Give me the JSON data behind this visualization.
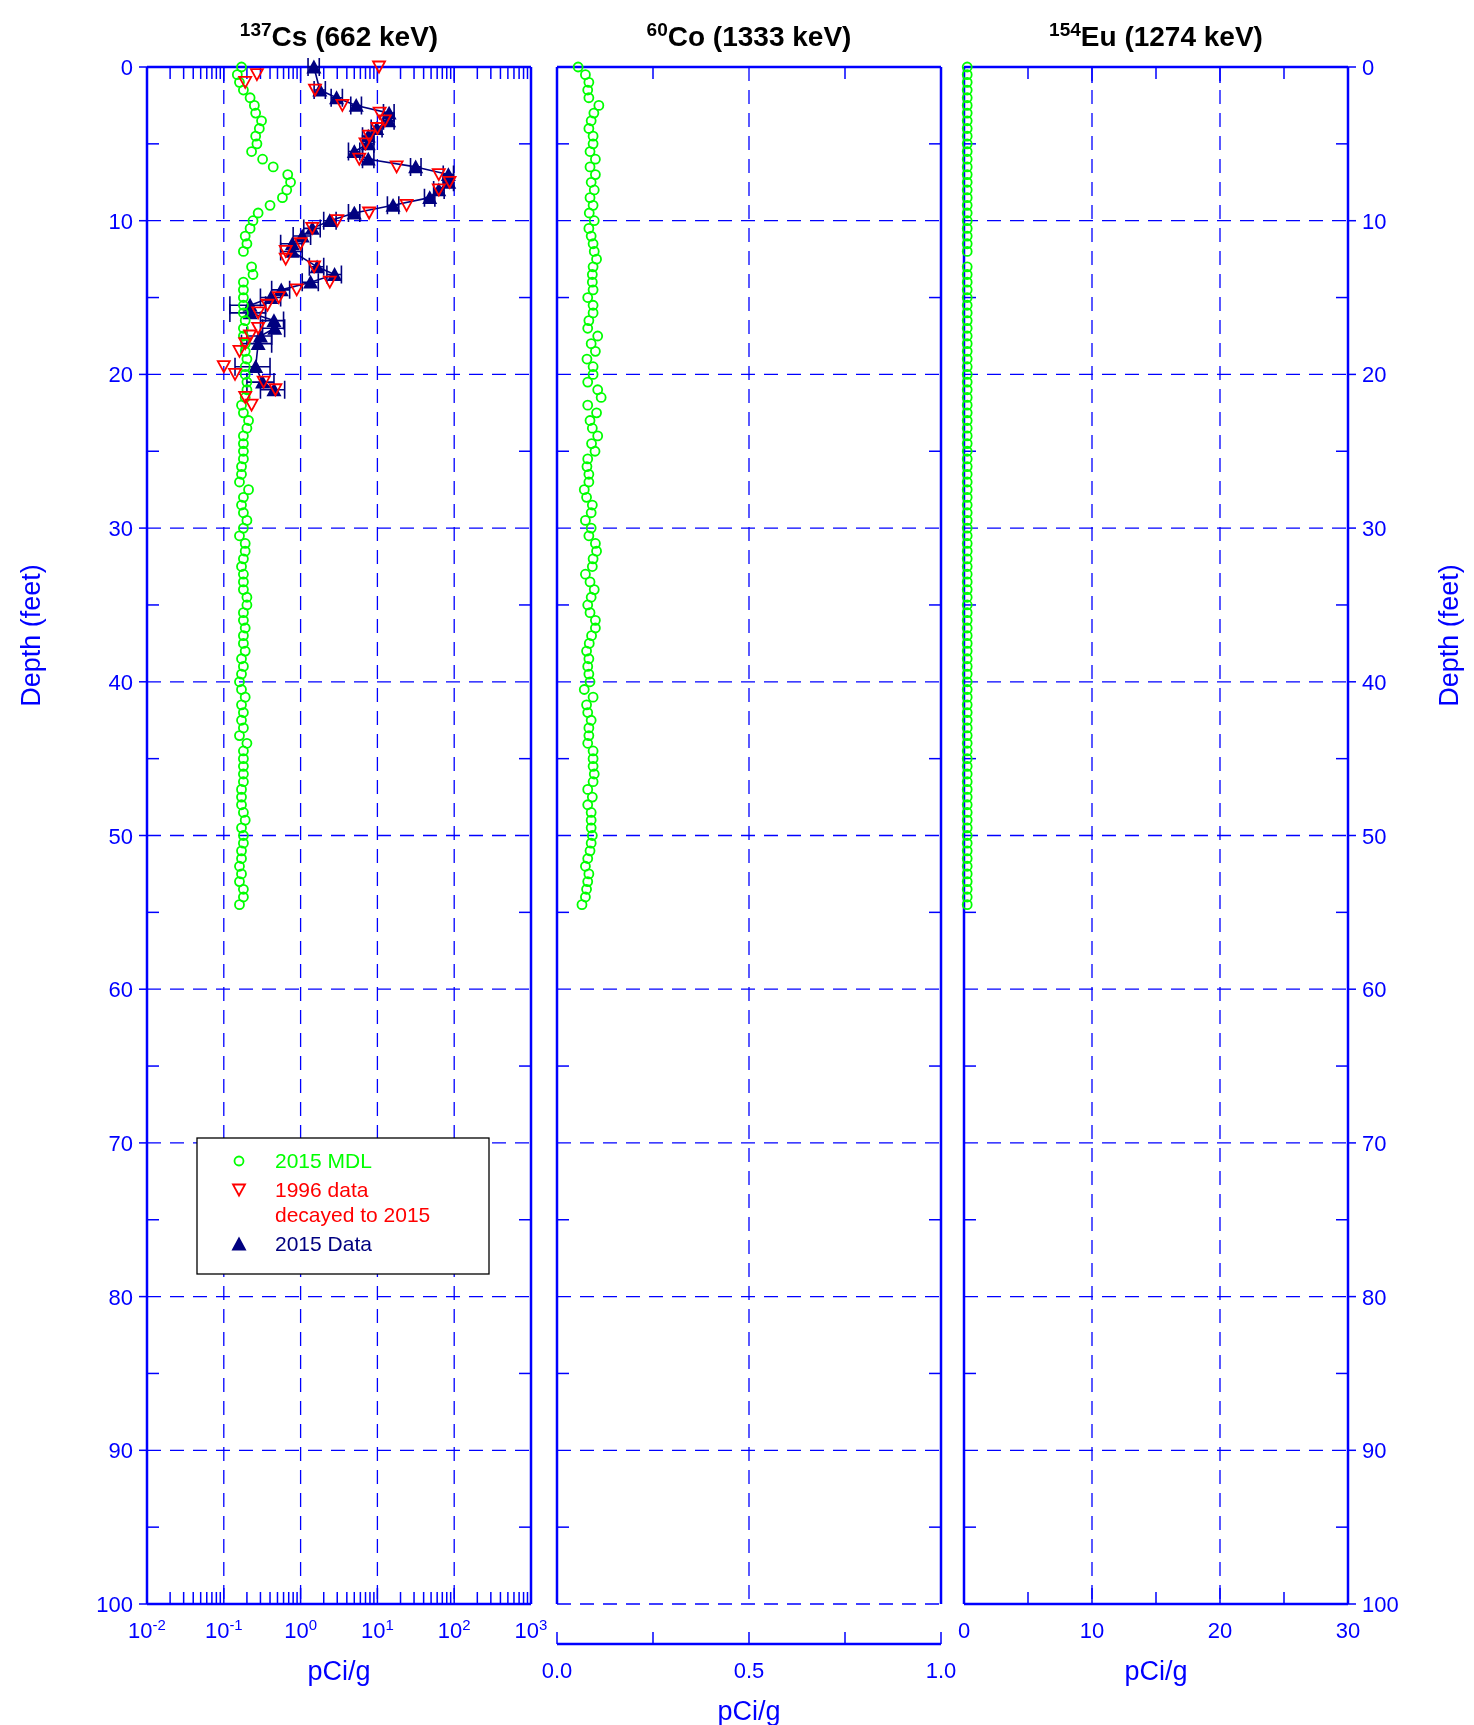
{
  "chart_data": [
    {
      "type": "scatter",
      "title": "$^{137}$Cs (662 keV)",
      "xlabel": "pCi/g",
      "ylabel": "Depth (feet)",
      "log": "x",
      "grid": true,
      "legend": "bottom left",
      "xlim": [
        0.01,
        1000
      ],
      "xticks": [
        {
          "value": 0.01,
          "label": "10$^{-2}$"
        },
        {
          "value": 0.1,
          "label": "10$^{-1}$"
        },
        {
          "value": 1,
          "label": "10$^{0}$"
        },
        {
          "value": 10,
          "label": "10$^{1}$"
        },
        {
          "value": 100,
          "label": "10$^{2}$"
        },
        {
          "value": 1000,
          "label": "10$^{3}$"
        },
        {
          "value": 0.02,
          "label": null
        },
        {
          "value": 0.03,
          "label": null
        },
        {
          "value": 0.04,
          "label": null
        },
        {
          "value": 0.05,
          "label": null
        },
        {
          "value": 0.06,
          "label": null
        },
        {
          "value": 0.07,
          "label": null
        },
        {
          "value": 0.08,
          "label": null
        },
        {
          "value": 0.09,
          "label": null
        },
        {
          "value": 0.2,
          "label": null
        },
        {
          "value": 0.3,
          "label": null
        },
        {
          "value": 0.4,
          "label": null
        },
        {
          "value": 0.5,
          "label": null
        },
        {
          "value": 0.6,
          "label": null
        },
        {
          "value": 0.7,
          "label": null
        },
        {
          "value": 0.8,
          "label": null
        },
        {
          "value": 0.9,
          "label": null
        },
        {
          "value": 2,
          "label": null
        },
        {
          "value": 3,
          "label": null
        },
        {
          "value": 4,
          "label": null
        },
        {
          "value": 5,
          "label": null
        },
        {
          "value": 6,
          "label": null
        },
        {
          "value": 7,
          "label": null
        },
        {
          "value": 8,
          "label": null
        },
        {
          "value": 9,
          "label": null
        },
        {
          "value": 20,
          "label": null
        },
        {
          "value": 30,
          "label": null
        },
        {
          "value": 40,
          "label": null
        },
        {
          "value": 50,
          "label": null
        },
        {
          "value": 60,
          "label": null
        },
        {
          "value": 70,
          "label": null
        },
        {
          "value": 80,
          "label": null
        },
        {
          "value": 90,
          "label": null
        },
        {
          "value": 200,
          "label": null
        },
        {
          "value": 300,
          "label": null
        },
        {
          "value": 400,
          "label": null
        },
        {
          "value": 500,
          "label": null
        },
        {
          "value": 600,
          "label": null
        },
        {
          "value": 700,
          "label": null
        },
        {
          "value": 800,
          "label": null
        },
        {
          "value": 900,
          "label": null
        }
      ],
      "ylim": [
        100,
        0
      ],
      "yticks": [
        0,
        10,
        20,
        30,
        40,
        50,
        60,
        70,
        80,
        90,
        100,
        {
          "value": 5,
          "label": null
        },
        {
          "value": 15,
          "label": null
        },
        {
          "value": 25,
          "label": null
        },
        {
          "value": 35,
          "label": null
        },
        {
          "value": 45,
          "label": null
        },
        {
          "value": 55,
          "label": null
        },
        {
          "value": 65,
          "label": null
        },
        {
          "value": 75,
          "label": null
        },
        {
          "value": 85,
          "label": null
        },
        {
          "value": 95,
          "label": null
        }
      ],
      "series": [
        {
          "name": "2015 MDL",
          "type": "scatter",
          "marker": "circle",
          "color": "#00ff00",
          "x": [
            0.17,
            0.15,
            0.16,
            0.18,
            0.22,
            0.25,
            0.26,
            0.31,
            0.29,
            0.26,
            0.27,
            0.23,
            0.32,
            0.44,
            0.68,
            0.74,
            0.66,
            0.58,
            0.4,
            0.28,
            0.24,
            0.22,
            0.19,
            0.2,
            0.18,
            0.23,
            0.24,
            0.18,
            0.18,
            0.18,
            0.18,
            0.18,
            0.19,
            0.18,
            0.18,
            0.19,
            0.19,
            0.2,
            0.19,
            0.19,
            0.2,
            0.2,
            0.19,
            0.17,
            0.18,
            0.21,
            0.2,
            0.18,
            0.18,
            0.18,
            0.18,
            0.17,
            0.17,
            0.16,
            0.21,
            0.18,
            0.17,
            0.18,
            0.2,
            0.18,
            0.16,
            0.19,
            0.19,
            0.18,
            0.17,
            0.18,
            0.18,
            0.18,
            0.2,
            0.2,
            0.18,
            0.18,
            0.19,
            0.18,
            0.18,
            0.19,
            0.17,
            0.18,
            0.17,
            0.16,
            0.17,
            0.19,
            0.17,
            0.18,
            0.17,
            0.18,
            0.16,
            0.2,
            0.18,
            0.18,
            0.18,
            0.18,
            0.18,
            0.17,
            0.17,
            0.17,
            0.18,
            0.19,
            0.17,
            0.18,
            0.18,
            0.17,
            0.17,
            0.16,
            0.17,
            0.16,
            0.18,
            0.18,
            0.16
          ],
          "values": [
            0,
            0.5,
            1,
            1.5,
            2,
            2.5,
            3,
            3.5,
            4,
            4.5,
            5,
            5.5,
            6,
            6.5,
            7,
            7.5,
            8,
            8.5,
            9,
            9.5,
            10,
            10.5,
            11,
            11.5,
            12,
            13,
            13.5,
            14,
            14.5,
            15,
            15.5,
            16,
            16.5,
            17,
            17.5,
            18,
            18.5,
            19,
            19.5,
            20,
            20.5,
            21,
            21.5,
            22,
            22.5,
            23,
            23.5,
            24,
            24.5,
            25,
            25.5,
            26,
            26.5,
            27,
            27.5,
            28,
            28.5,
            29,
            29.5,
            30,
            30.5,
            31,
            31.5,
            32,
            32.5,
            33,
            33.5,
            34,
            34.5,
            35,
            35.5,
            36,
            36.5,
            37,
            37.5,
            38,
            38.5,
            39,
            39.5,
            40,
            40.5,
            41,
            41.5,
            42,
            42.5,
            43,
            43.5,
            44,
            44.5,
            45,
            45.5,
            46,
            46.5,
            47,
            47.5,
            48,
            48.5,
            49,
            49.5,
            50,
            50.5,
            51,
            51.5,
            52,
            52.5,
            53,
            53.5,
            54,
            54.5
          ]
        },
        {
          "name": "1996 data decayed to 2015",
          "type": "scatter",
          "marker": "triangle-down",
          "color": "#ff0000",
          "x": [
            10.5,
            0.27,
            0.19,
            1.54,
            3.5,
            10.7,
            12.5,
            10,
            7.8,
            7.0,
            5.8,
            17.8,
            63,
            87,
            63,
            24,
            7.8,
            3.0,
            1.42,
            1.0,
            0.64,
            0.64,
            1.5,
            2.4,
            0.89,
            0.52,
            0.37,
            0.28,
            0.28,
            0.22,
            0.19,
            0.16,
            0.1,
            0.14,
            0.33,
            0.47,
            0.19,
            0.23
          ],
          "values": [
            0,
            0.5,
            1,
            1.5,
            2.5,
            3,
            3.5,
            4,
            4.5,
            5,
            6,
            6.5,
            7,
            7.5,
            8,
            9,
            9.5,
            10,
            10.5,
            11.5,
            12,
            12.5,
            13,
            14,
            14.5,
            15,
            15.5,
            16,
            17,
            17.5,
            18,
            18.5,
            19.5,
            20,
            20.5,
            21,
            21.5,
            22
          ]
        },
        {
          "name": "2015 Data",
          "type": "line",
          "marker": "triangle",
          "color": "#000080",
          "x": [
            1.49,
            1.78,
            2.94,
            5.3,
            14.2,
            14,
            9.8,
            7.6,
            7.6,
            5.0,
            7.6,
            31.5,
            84,
            85,
            63,
            48,
            16,
            5.0,
            2.4,
            1.42,
            1.05,
            0.78,
            0.78,
            1.64,
            2.77,
            1.35,
            0.56,
            0.41,
            0.22,
            0.22,
            0.45,
            0.46,
            0.3,
            0.28,
            0.26,
            0.32,
            0.45
          ],
          "values": [
            0,
            1.5,
            2,
            2.5,
            3,
            3.5,
            4,
            4.5,
            5,
            5.5,
            6,
            6.5,
            7,
            7.5,
            8,
            8.5,
            9,
            9.5,
            10,
            10.5,
            11,
            11.5,
            12,
            13,
            13.5,
            14,
            14.5,
            15,
            15.5,
            16,
            16.5,
            17,
            17.5,
            18,
            19.5,
            20.5,
            21
          ],
          "xerrors": [
            [
              1.25,
              1.75
            ],
            [
              1.5,
              2.1
            ],
            [
              2.5,
              3.5
            ],
            [
              4.5,
              6.2
            ],
            [
              12,
              16.5
            ],
            [
              12,
              16.5
            ],
            [
              8.3,
              11.5
            ],
            [
              6.4,
              9
            ],
            [
              6.4,
              9
            ],
            [
              4.2,
              5.9
            ],
            [
              6.4,
              9
            ],
            [
              27,
              37
            ],
            [
              72,
              98
            ],
            [
              72,
              98
            ],
            [
              54,
              74
            ],
            [
              41,
              56
            ],
            [
              13.5,
              19
            ],
            [
              4.2,
              5.9
            ],
            [
              2,
              2.9
            ],
            [
              1.1,
              1.8
            ],
            [
              0.8,
              1.35
            ],
            [
              0.55,
              1.05
            ],
            [
              0.55,
              1.05
            ],
            [
              1.3,
              2.0
            ],
            [
              2.2,
              3.4
            ],
            [
              1.05,
              1.7
            ],
            [
              0.42,
              0.72
            ],
            [
              0.3,
              0.55
            ],
            [
              0.12,
              0.35
            ],
            [
              0.12,
              0.35
            ],
            [
              0.3,
              0.6
            ],
            [
              0.32,
              0.62
            ],
            [
              0.2,
              0.42
            ],
            [
              0.17,
              0.42
            ],
            [
              0.14,
              0.4
            ],
            [
              0.2,
              0.45
            ],
            [
              0.3,
              0.62
            ]
          ]
        }
      ]
    },
    {
      "type": "scatter",
      "title": "$^{60}$Co (1333 keV)",
      "xlabel": "pCi/g",
      "grid": true,
      "tick_labels": "x",
      "xlim": [
        0,
        1
      ],
      "xticks": [
        {
          "value": 0,
          "label": "0.0"
        },
        {
          "value": 0.25,
          "label": null
        },
        {
          "value": 0.5,
          "label": "0.5"
        },
        {
          "value": 0.75,
          "label": null
        },
        {
          "value": 1,
          "label": "1.0"
        }
      ],
      "ylim": [
        100,
        0
      ],
      "yticks": [
        0,
        10,
        20,
        30,
        40,
        50,
        60,
        70,
        80,
        90,
        100,
        {
          "value": 5,
          "label": null
        },
        {
          "value": 15,
          "label": null
        },
        {
          "value": 25,
          "label": null
        },
        {
          "value": 35,
          "label": null
        },
        {
          "value": 45,
          "label": null
        },
        {
          "value": 55,
          "label": null
        },
        {
          "value": 65,
          "label": null
        },
        {
          "value": 75,
          "label": null
        },
        {
          "value": 85,
          "label": null
        },
        {
          "value": 95,
          "label": null
        }
      ],
      "series": [
        {
          "type": "scatter",
          "marker": "circle",
          "color": "#00ff00",
          "x": [
            0.055,
            0.074,
            0.083,
            0.08,
            0.083,
            0.109,
            0.096,
            0.089,
            0.083,
            0.094,
            0.094,
            0.086,
            0.1,
            0.086,
            0.1,
            0.089,
            0.097,
            0.086,
            0.094,
            0.084,
            0.097,
            0.083,
            0.089,
            0.094,
            0.097,
            0.103,
            0.094,
            0.092,
            0.092,
            0.094,
            0.08,
            0.094,
            0.094,
            0.083,
            0.08,
            0.106,
            0.089,
            0.1,
            0.078,
            0.094,
            0.094,
            0.08,
            0.106,
            0.115,
            0.08,
            0.103,
            0.086,
            0.092,
            0.106,
            0.09,
            0.099,
            0.08,
            0.078,
            0.083,
            0.083,
            0.071,
            0.077,
            0.092,
            0.089,
            0.074,
            0.089,
            0.083,
            0.1,
            0.103,
            0.094,
            0.092,
            0.074,
            0.086,
            0.097,
            0.089,
            0.08,
            0.086,
            0.1,
            0.1,
            0.09,
            0.084,
            0.077,
            0.083,
            0.08,
            0.083,
            0.086,
            0.071,
            0.094,
            0.077,
            0.08,
            0.089,
            0.083,
            0.083,
            0.08,
            0.094,
            0.094,
            0.094,
            0.097,
            0.094,
            0.08,
            0.092,
            0.08,
            0.089,
            0.089,
            0.089,
            0.092,
            0.089,
            0.086,
            0.08,
            0.074,
            0.083,
            0.08,
            0.077,
            0.074,
            0.065
          ],
          "values": [
            0,
            0.5,
            1,
            1.5,
            2,
            2.5,
            3,
            3.5,
            4,
            4.5,
            5,
            5.5,
            6,
            6.5,
            7,
            7.5,
            8,
            8.5,
            9,
            9.5,
            10,
            10.5,
            11,
            11.5,
            12,
            12.5,
            13,
            13.5,
            14,
            14.5,
            15,
            15.5,
            16,
            16.5,
            17,
            17.5,
            18,
            18.5,
            19,
            19.5,
            20,
            20.5,
            21,
            21.5,
            22,
            22.5,
            23,
            23.5,
            24,
            24.5,
            25,
            25.5,
            26,
            26.5,
            27,
            27.5,
            28,
            28.5,
            29,
            29.5,
            30,
            30.5,
            31,
            31.5,
            32,
            32.5,
            33,
            33.5,
            34,
            34.5,
            35,
            35.5,
            36,
            36.5,
            37,
            37.5,
            38,
            38.5,
            39,
            39.5,
            40,
            40.5,
            41,
            41.5,
            42,
            42.5,
            43,
            43.5,
            44,
            44.5,
            45,
            45.5,
            46,
            46.5,
            47,
            47.5,
            48,
            48.5,
            49,
            49.5,
            50,
            50.5,
            51,
            51.5,
            52,
            52.5,
            53,
            53.5,
            54,
            54.5
          ]
        }
      ]
    },
    {
      "type": "scatter",
      "title": "$^{154}$Eu (1274 keV)",
      "xlabel": "pCi/g",
      "ylabel": "Depth (feet)",
      "grid": true,
      "xlim": [
        0,
        30
      ],
      "xticks": [
        0,
        10,
        20,
        30,
        {
          "value": 5,
          "label": null
        },
        {
          "value": 15,
          "label": null
        },
        {
          "value": 25,
          "label": null
        }
      ],
      "ylim": [
        100,
        0
      ],
      "yticks": [
        0,
        10,
        20,
        30,
        40,
        50,
        60,
        70,
        80,
        90,
        100,
        {
          "value": 5,
          "label": null
        },
        {
          "value": 15,
          "label": null
        },
        {
          "value": 25,
          "label": null
        },
        {
          "value": 35,
          "label": null
        },
        {
          "value": 45,
          "label": null
        },
        {
          "value": 55,
          "label": null
        },
        {
          "value": 65,
          "label": null
        },
        {
          "value": 75,
          "label": null
        },
        {
          "value": 85,
          "label": null
        },
        {
          "value": 95,
          "label": null
        }
      ],
      "series": [
        {
          "type": "scatter",
          "marker": "circle",
          "color": "#00ff00",
          "x": [
            0.25,
            0.25,
            0.25,
            0.25,
            0.25,
            0.25,
            0.25,
            0.25,
            0.25,
            0.25,
            0.25,
            0.25,
            0.25,
            0.25,
            0.25,
            0.25,
            0.25,
            0.25,
            0.25,
            0.25,
            0.25,
            0.25,
            0.25,
            0.25,
            0.25,
            0.25,
            0.25,
            0.25,
            0.25,
            0.25,
            0.25,
            0.25,
            0.25,
            0.25,
            0.25,
            0.25,
            0.25,
            0.25,
            0.25,
            0.25,
            0.25,
            0.25,
            0.25,
            0.25,
            0.25,
            0.25,
            0.25,
            0.25,
            0.25,
            0.25,
            0.25,
            0.25,
            0.25,
            0.25,
            0.25,
            0.25,
            0.25,
            0.25,
            0.25,
            0.25,
            0.25,
            0.25,
            0.25,
            0.25,
            0.25,
            0.25,
            0.25,
            0.25,
            0.25,
            0.25,
            0.25,
            0.25,
            0.25,
            0.25,
            0.25,
            0.25,
            0.25,
            0.25,
            0.25,
            0.25,
            0.25,
            0.25,
            0.25,
            0.25,
            0.25,
            0.25,
            0.25,
            0.25,
            0.25,
            0.25,
            0.25,
            0.25,
            0.25,
            0.25,
            0.25,
            0.25,
            0.25,
            0.25,
            0.25,
            0.25,
            0.25,
            0.25,
            0.25,
            0.25,
            0.25,
            0.25,
            0.25,
            0.25,
            0.25
          ],
          "values": [
            0,
            0.5,
            1,
            1.5,
            2,
            2.5,
            3,
            3.5,
            4,
            4.5,
            5,
            5.5,
            6,
            6.5,
            7,
            7.5,
            8,
            8.5,
            9,
            9.5,
            10,
            10.5,
            11,
            11.5,
            12,
            13,
            13.5,
            14,
            14.5,
            15,
            15.5,
            16,
            16.5,
            17,
            17.5,
            18,
            18.5,
            19,
            19.5,
            20,
            20.5,
            21,
            21.5,
            22,
            22.5,
            23,
            23.5,
            24,
            24.5,
            25,
            25.5,
            26,
            26.5,
            27,
            27.5,
            28,
            28.5,
            29,
            29.5,
            30,
            30.5,
            31,
            31.5,
            32,
            32.5,
            33,
            33.5,
            34,
            34.5,
            35,
            35.5,
            36,
            36.5,
            37,
            37.5,
            38,
            38.5,
            39,
            39.5,
            40,
            40.5,
            41,
            41.5,
            42,
            42.5,
            43,
            43.5,
            44,
            44.5,
            45,
            45.5,
            46,
            46.5,
            47,
            47.5,
            48,
            48.5,
            49,
            49.5,
            50,
            50.5,
            51,
            51.5,
            52,
            52.5,
            53,
            53.5,
            54,
            54.5
          ]
        }
      ]
    }
  ]
}
